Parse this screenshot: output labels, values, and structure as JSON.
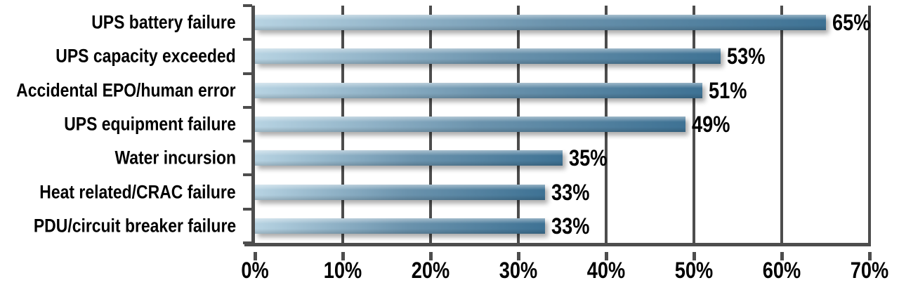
{
  "chart_data": {
    "type": "bar",
    "orientation": "horizontal",
    "title": "",
    "categories": [
      "UPS battery failure",
      "UPS capacity exceeded",
      "Accidental EPO/human error",
      "UPS equipment failure",
      "Water incursion",
      "Heat related/CRAC failure",
      "PDU/circuit breaker failure"
    ],
    "values": [
      65,
      53,
      51,
      49,
      35,
      33,
      33
    ],
    "value_labels": [
      "65%",
      "53%",
      "51%",
      "49%",
      "35%",
      "33%",
      "33%"
    ],
    "xlabel": "",
    "ylabel": "",
    "xlim": [
      0,
      70
    ],
    "x_ticks": [
      "0%",
      "10%",
      "20%",
      "30%",
      "40%",
      "50%",
      "60%",
      "70%"
    ],
    "grid": "vertical gridlines at every 10%",
    "legend_position": "none",
    "colors": {
      "bar_gradient_start": "#b7d3e2",
      "bar_gradient_mid": "#6b93ad",
      "bar_gradient_end": "#3e7294",
      "axis_and_grid": "#4d4d4d",
      "text": "#000000",
      "background": "#ffffff"
    }
  }
}
